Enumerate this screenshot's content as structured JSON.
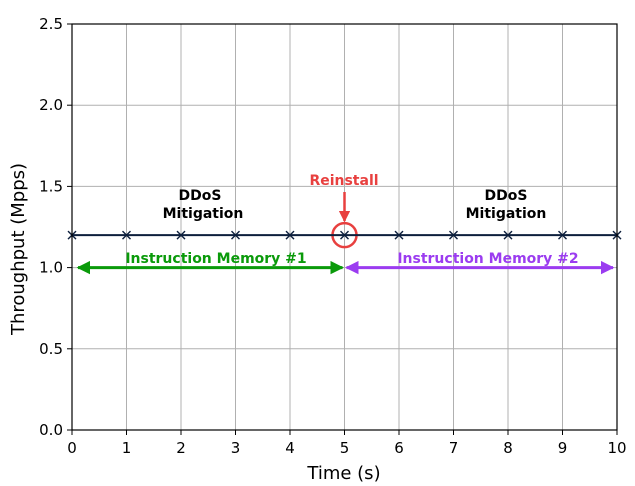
{
  "chart_data": {
    "type": "line",
    "xlabel": "Time (s)",
    "ylabel": "Throughput (Mpps)",
    "xlim": [
      0,
      10
    ],
    "ylim": [
      0,
      2.5
    ],
    "x_ticks": [
      "0",
      "1",
      "2",
      "3",
      "4",
      "5",
      "6",
      "7",
      "8",
      "9",
      "10"
    ],
    "y_ticks": [
      "0.0",
      "0.5",
      "1.0",
      "1.5",
      "2.0",
      "2.5"
    ],
    "grid": true,
    "series": [
      {
        "x": [
          0,
          1,
          2,
          3,
          4,
          5,
          6,
          7,
          8,
          9,
          10
        ],
        "y": [
          1.2,
          1.2,
          1.2,
          1.2,
          1.2,
          1.2,
          1.2,
          1.2,
          1.2,
          1.2,
          1.2
        ],
        "color": "#0d1f3c",
        "marker": "x"
      }
    ],
    "annotations": {
      "phase1_label_line1": "DDoS",
      "phase1_label_line2": "Mitigation",
      "phase2_label_line1": "DDoS",
      "phase2_label_line2": "Mitigation",
      "reinstall_label": "Reinstall",
      "reinstall_color": "#e8403f",
      "reinstall_x": 5,
      "memory1_label": "Instruction Memory  #1",
      "memory1_color": "#0a9a0a",
      "memory1_range": [
        0,
        5
      ],
      "memory2_label": "Instruction Memory #2",
      "memory2_color": "#9b3cf0",
      "memory2_range": [
        5,
        10
      ],
      "memory_arrow_y": 1.0
    }
  }
}
